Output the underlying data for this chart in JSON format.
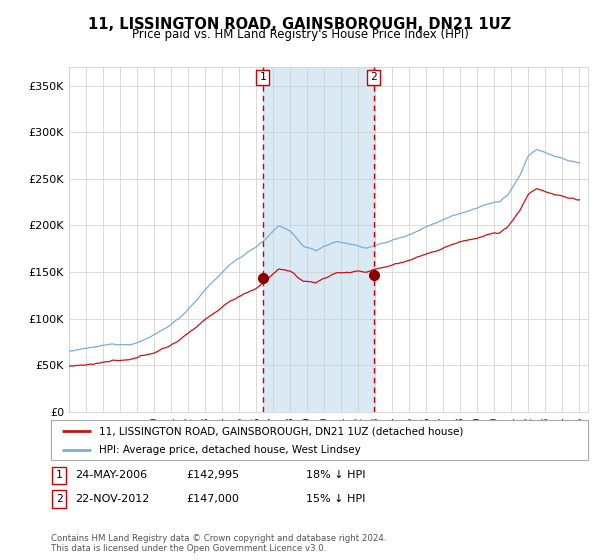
{
  "title": "11, LISSINGTON ROAD, GAINSBOROUGH, DN21 1UZ",
  "subtitle": "Price paid vs. HM Land Registry's House Price Index (HPI)",
  "legend_line1": "11, LISSINGTON ROAD, GAINSBOROUGH, DN21 1UZ (detached house)",
  "legend_line2": "HPI: Average price, detached house, West Lindsey",
  "transaction1_date": "24-MAY-2006",
  "transaction1_price": 142995,
  "transaction1_pct": "18% ↓ HPI",
  "transaction2_date": "22-NOV-2012",
  "transaction2_price": 147000,
  "transaction2_pct": "15% ↓ HPI",
  "hpi_color": "#7aaed6",
  "price_color": "#cc1111",
  "marker_color": "#8b0000",
  "vline_color": "#cc0000",
  "shade_color": "#daeaf5",
  "grid_color": "#cccccc",
  "bg_color": "#ffffff",
  "footnote": "Contains HM Land Registry data © Crown copyright and database right 2024.\nThis data is licensed under the Open Government Licence v3.0.",
  "ylim_min": 0,
  "ylim_max": 370000,
  "transaction1_year": 2006.38,
  "transaction2_year": 2012.9
}
